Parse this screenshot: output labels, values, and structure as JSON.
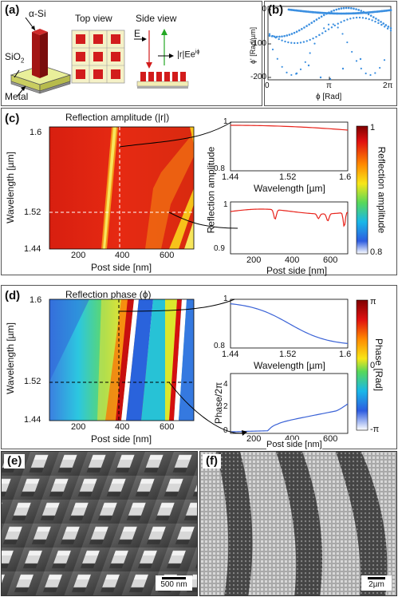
{
  "panel_a": {
    "label": "(a)",
    "material_top": "α-Si",
    "material_mid": "SiO",
    "material_mid_sub": "2",
    "material_bottom": "Metal",
    "top_view": "Top view",
    "side_view": "Side view",
    "field_E": "E",
    "field_r": "|r|Ee",
    "field_r_sup": "iϕ"
  },
  "panel_b": {
    "label": "(b)",
    "ylabel": "ϕ' [Rad/µm]",
    "xlabel": "ϕ [Rad]",
    "yticks": [
      "0",
      "-100",
      "-200"
    ],
    "xticks": [
      "0",
      "π",
      "2π"
    ]
  },
  "panel_c": {
    "label": "(c)",
    "map_title": "Reflection amplitude (|r|)",
    "ylabel": "Wavelength [µm]",
    "xlabel": "Post side [nm]",
    "yticks": [
      "1.6",
      "1.52",
      "1.44"
    ],
    "xticks": [
      "200",
      "400",
      "600"
    ],
    "line1_xlabel": "Wavelength [µm]",
    "line1_xticks": [
      "1.44",
      "1.52",
      "1.6"
    ],
    "line1_yticks": [
      "1",
      "0.8"
    ],
    "shared_ylabel": "Reflection amplitude",
    "line2_xticks": [
      "200",
      "400",
      "600"
    ],
    "line2_yticks": [
      "1",
      "0.9"
    ],
    "cbar_label": "Reflection amplitude",
    "cbar_max": "1",
    "cbar_min": "0.8"
  },
  "panel_d": {
    "label": "(d)",
    "map_title": "Reflection phase (ϕ)",
    "ylabel": "Wavelength [µm]",
    "xlabel": "Post side [nm]",
    "yticks": [
      "1.6",
      "1.52",
      "1.44"
    ],
    "xticks": [
      "200",
      "400",
      "600"
    ],
    "line1_xlabel": "Wavelength [µm]",
    "line1_xticks": [
      "1.44",
      "1.52",
      "1.6"
    ],
    "line1_yticks": [
      "1",
      "0.8"
    ],
    "line2_ylabel": "Phase/2π",
    "line2_xlabel": "Post side [nm]",
    "line2_xticks": [
      "200",
      "400",
      "600"
    ],
    "line2_yticks": [
      "4",
      "2",
      "0"
    ],
    "cbar_label": "Phase [Rad]",
    "cbar_max": "π",
    "cbar_mid": "0",
    "cbar_min": "-π"
  },
  "panel_e": {
    "label": "(e)",
    "scale": "500 nm"
  },
  "panel_f": {
    "label": "(f)",
    "scale": "2µm"
  },
  "colors": {
    "line_red": "#e8231b",
    "line_blue": "#3a62d6",
    "dots": "#3b8fe0"
  }
}
